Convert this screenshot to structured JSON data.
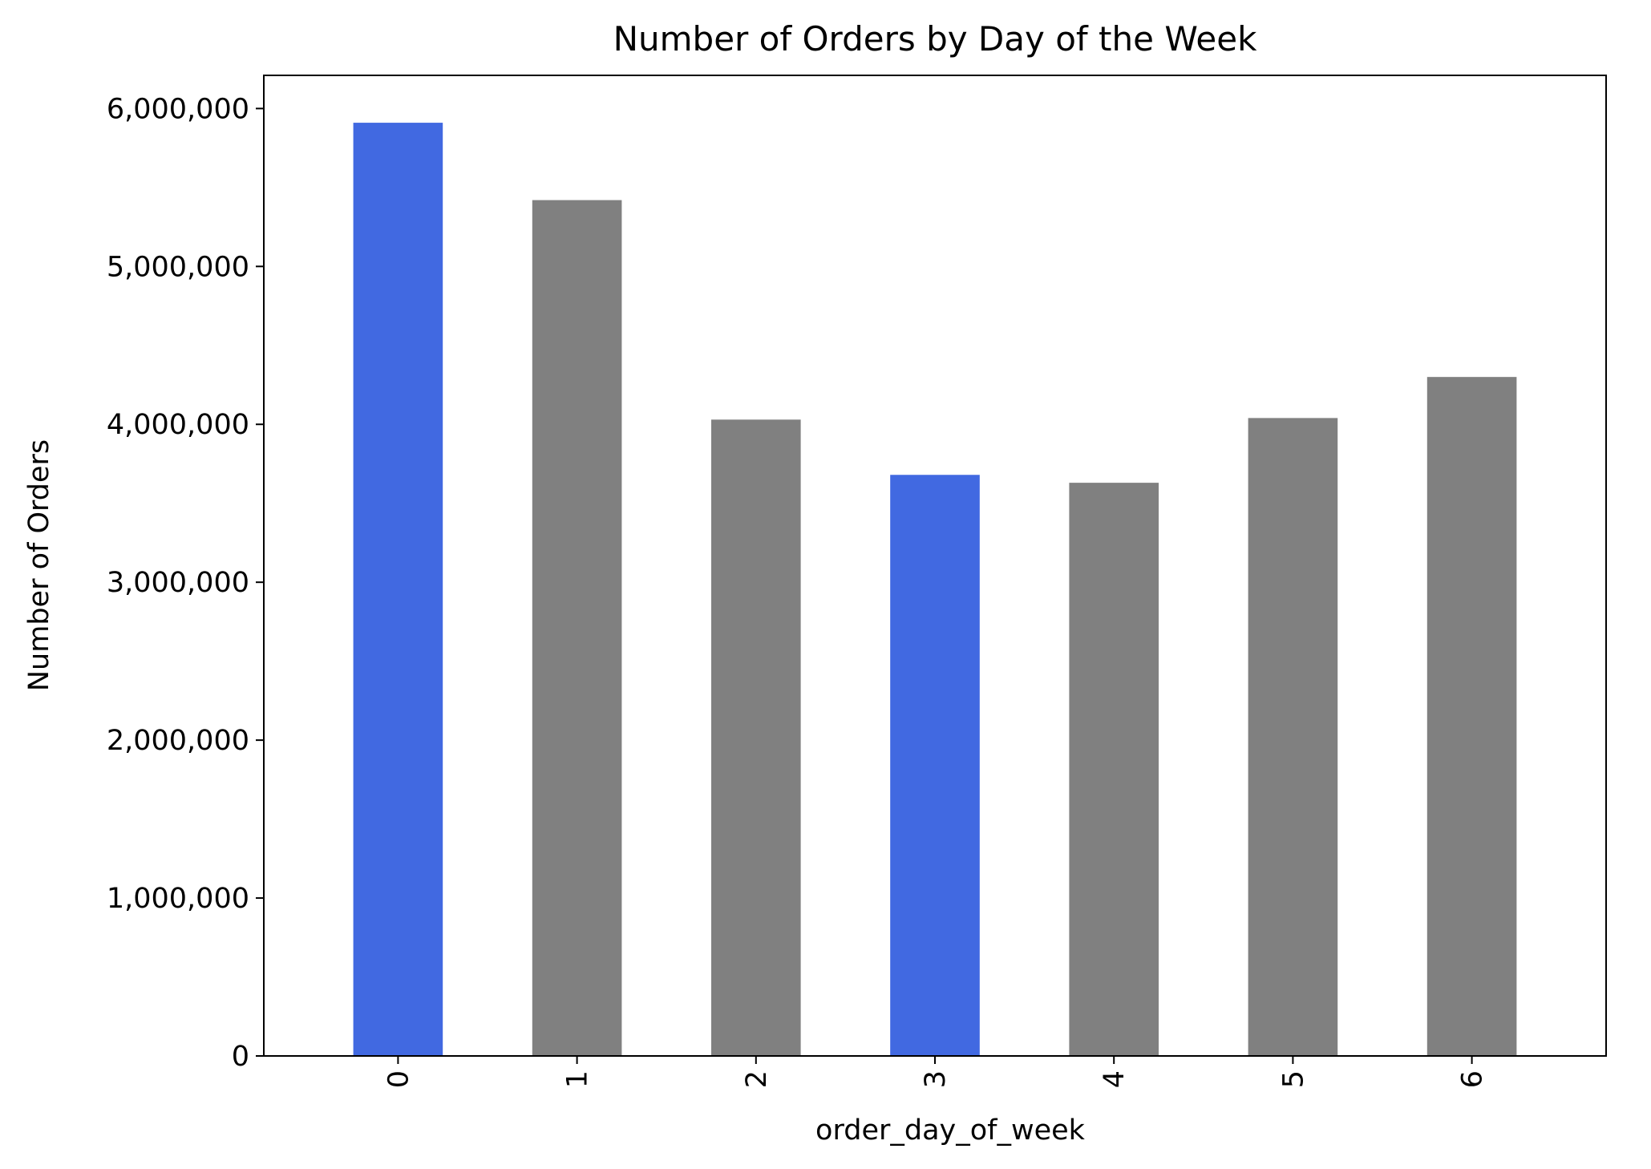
{
  "chart_data": {
    "type": "bar",
    "title": "Number of Orders by Day of the Week",
    "xlabel": "order_day_of_week",
    "ylabel": "Number of Orders",
    "categories": [
      "0",
      "1",
      "2",
      "3",
      "4",
      "5",
      "6"
    ],
    "values": [
      5910000,
      5420000,
      4030000,
      3680000,
      3630000,
      4040000,
      4300000
    ],
    "bar_colors": [
      "#4169E1",
      "#808080",
      "#808080",
      "#4169E1",
      "#808080",
      "#808080",
      "#808080"
    ],
    "ylim": [
      0,
      6210000
    ],
    "yticks": [
      0,
      1000000,
      2000000,
      3000000,
      4000000,
      5000000,
      6000000
    ],
    "ytick_labels": [
      "0",
      "1,000,000",
      "2,000,000",
      "3,000,000",
      "4,000,000",
      "5,000,000",
      "6,000,000"
    ],
    "grid": false,
    "legend": "none"
  }
}
